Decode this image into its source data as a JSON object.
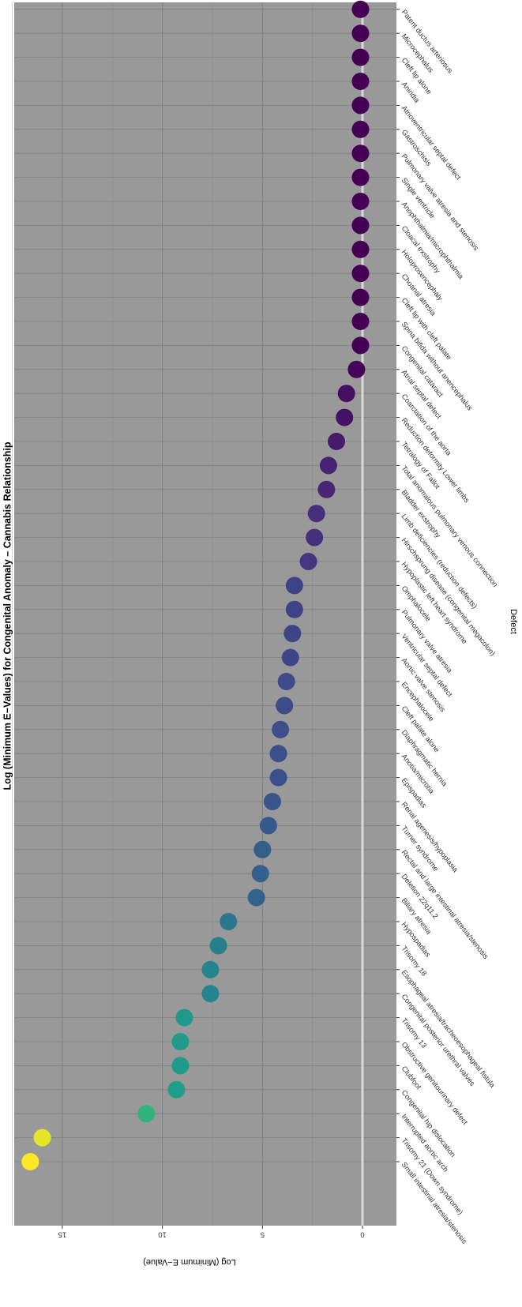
{
  "chart_data": {
    "type": "scatter",
    "title": "Log (Minimum E−Values) for Congenital Anomaly – Cannabis Relationship",
    "xlabel": "Defect",
    "ylabel": "Log (Minimum E−Value)",
    "ylim": [
      0,
      17.5
    ],
    "y_ticks": [
      0,
      5,
      10,
      15
    ],
    "y_tick_labels": [
      "0",
      "5",
      "10",
      "15"
    ],
    "reference_line": 0,
    "grid": true,
    "legend": "none",
    "orientation": "rotated 90° clockwise",
    "colors": {
      "panel": "#999999",
      "grid": "#7f7f7f",
      "reference_line": "#d9d9d9",
      "palette": [
        "#440154",
        "#482878",
        "#3e4989",
        "#31688e",
        "#26828e",
        "#1f9e89",
        "#35b779",
        "#6ece58",
        "#b5de2b",
        "#fde725"
      ]
    },
    "categories": [
      "Small intestinal atresia/stenosis",
      "Trisomy 21 (Down syndrome)",
      "Interrupted aortic arch",
      "Congenital hip dislocation",
      "Clubfoot",
      "Obstructive genitourinary defect",
      "Trisomy 13",
      "Congenital posterior urethral valves",
      "Esophageal atresia/tracheoesophageal fistula",
      "Trisomy 18",
      "Hypospadias",
      "Biliary atresia",
      "Deletion 22q11.2",
      "Rectal and large intestinal atresia/stenosis",
      "Turner syndrome",
      "Renal agenesis/hypoplasia",
      "Epispadias",
      "Anotia/microtia",
      "Diaphragmatic hernia",
      "Cleft palate alone",
      "Encephalocele",
      "Aortic valve stenosis",
      "Ventricular septal defect",
      "Pulmonary valve atresia",
      "Omphalocele",
      "Hypoplastic left heart syndrome",
      "Hirschsprung disease (congenital megacolon)",
      "Limb deficiencies (reduction defects)",
      "Bladder exstrophy",
      "Total anomalous pulmonary venous connection",
      "Tetralogy of Fallot",
      "Reduction deformity Lower limbs",
      "Coarctation of the aorta",
      "Atrial septal defect",
      "Congenital cataract",
      "Spina bifida without anencephalus",
      "Cleft lip with cleft palate",
      "Choanal atresia",
      "Holoprosencephaly",
      "Cloacal exstrophy",
      "Anophthalmia/microphthalmia",
      "Single ventricle",
      "Pulmonary valve atresia and stenosis",
      "Gastroschisis",
      "Atrioventricular septal defect",
      "Aniridia",
      "Cleft lip alone",
      "Microcephalus",
      "Patent ductus arteriosus"
    ],
    "values": [
      16.6,
      16.0,
      10.8,
      9.3,
      9.1,
      9.1,
      8.9,
      7.6,
      7.6,
      7.2,
      6.7,
      5.3,
      5.1,
      5.0,
      4.7,
      4.5,
      4.2,
      4.2,
      4.1,
      3.9,
      3.8,
      3.6,
      3.5,
      3.4,
      3.4,
      2.7,
      2.4,
      2.3,
      1.8,
      1.7,
      1.3,
      0.9,
      0.8,
      0.3,
      0.1,
      0.1,
      0.1,
      0.1,
      0.1,
      0.1,
      0.1,
      0.1,
      0.1,
      0.1,
      0.1,
      0.1,
      0.1,
      0.1,
      0.1
    ]
  }
}
